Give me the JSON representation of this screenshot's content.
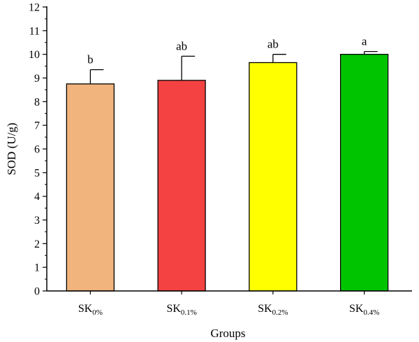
{
  "chart_data": {
    "type": "bar",
    "xlabel": "Groups",
    "ylabel": "SOD (U/g)",
    "ylim": [
      0,
      12
    ],
    "yticks": [
      0,
      1,
      2,
      3,
      4,
      5,
      6,
      7,
      8,
      9,
      10,
      11,
      12
    ],
    "grid": false,
    "categories": [
      {
        "base": "SK",
        "sub": "0%"
      },
      {
        "base": "SK",
        "sub": "0.1%"
      },
      {
        "base": "SK",
        "sub": "0.2%"
      },
      {
        "base": "SK",
        "sub": "0.4%"
      }
    ],
    "values": [
      8.75,
      8.9,
      9.65,
      10.0
    ],
    "errors": [
      0.6,
      1.02,
      0.35,
      0.12
    ],
    "significance": [
      "b",
      "ab",
      "ab",
      "a"
    ],
    "colors": [
      "#f0b47c",
      "#f44242",
      "#ffff00",
      "#00c400"
    ]
  }
}
